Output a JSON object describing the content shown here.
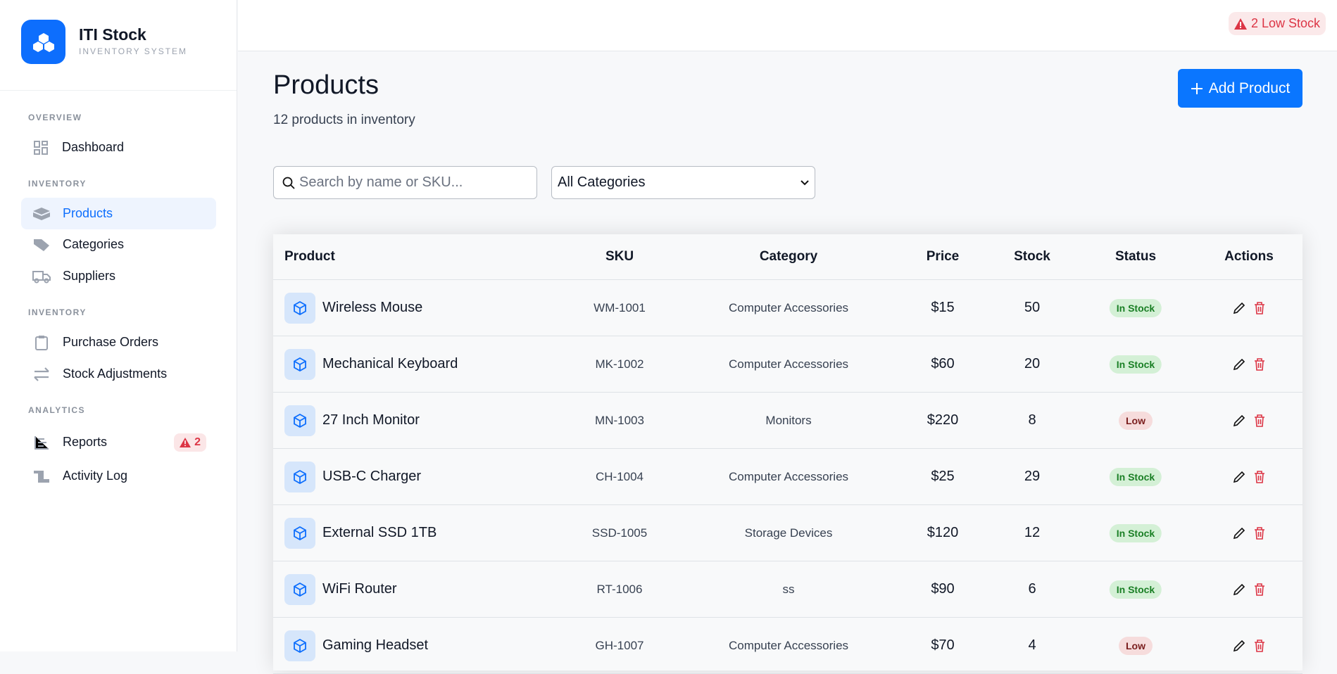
{
  "brand": {
    "title": "ITI Stock",
    "subtitle": "INVENTORY SYSTEM"
  },
  "sidebar": {
    "sections": [
      "OVERVIEW",
      "INVENTORY",
      "INVENTORY",
      "ANALYTICS"
    ],
    "items": [
      {
        "label": "Dashboard",
        "icon": "grid-icon"
      },
      {
        "label": "Products",
        "icon": "box-icon",
        "active": true
      },
      {
        "label": "Categories",
        "icon": "tag-icon"
      },
      {
        "label": "Suppliers",
        "icon": "truck-icon"
      },
      {
        "label": "Purchase Orders",
        "icon": "clipboard-icon"
      },
      {
        "label": "Stock Adjustments",
        "icon": "arrows-icon"
      },
      {
        "label": "Reports",
        "icon": "chart-icon",
        "badge": "2"
      },
      {
        "label": "Activity Log",
        "icon": "scroll-icon"
      }
    ]
  },
  "topbar": {
    "low_stock": "2 Low Stock"
  },
  "page": {
    "title": "Products",
    "subtitle": "12 products in inventory",
    "add_label": "Add Product"
  },
  "filters": {
    "search_placeholder": "Search by name or SKU...",
    "category_selected": "All Categories"
  },
  "table": {
    "headers": [
      "Product",
      "SKU",
      "Category",
      "Price",
      "Stock",
      "Status",
      "Actions"
    ],
    "rows": [
      {
        "name": "Wireless Mouse",
        "sku": "WM-1001",
        "category": "Computer Accessories",
        "price": "$15",
        "stock": "50",
        "status": "In Stock"
      },
      {
        "name": "Mechanical Keyboard",
        "sku": "MK-1002",
        "category": "Computer Accessories",
        "price": "$60",
        "stock": "20",
        "status": "In Stock"
      },
      {
        "name": "27 Inch Monitor",
        "sku": "MN-1003",
        "category": "Monitors",
        "price": "$220",
        "stock": "8",
        "status": "Low"
      },
      {
        "name": "USB-C Charger",
        "sku": "CH-1004",
        "category": "Computer Accessories",
        "price": "$25",
        "stock": "29",
        "status": "In Stock"
      },
      {
        "name": "External SSD 1TB",
        "sku": "SSD-1005",
        "category": "Storage Devices",
        "price": "$120",
        "stock": "12",
        "status": "In Stock"
      },
      {
        "name": "WiFi Router",
        "sku": "RT-1006",
        "category": "ss",
        "price": "$90",
        "stock": "6",
        "status": "In Stock"
      },
      {
        "name": "Gaming Headset",
        "sku": "GH-1007",
        "category": "Computer Accessories",
        "price": "$70",
        "stock": "4",
        "status": "Low"
      }
    ]
  },
  "colors": {
    "accent": "#0a76ff",
    "danger": "#dc3545",
    "in_stock": "#1a7f25"
  }
}
